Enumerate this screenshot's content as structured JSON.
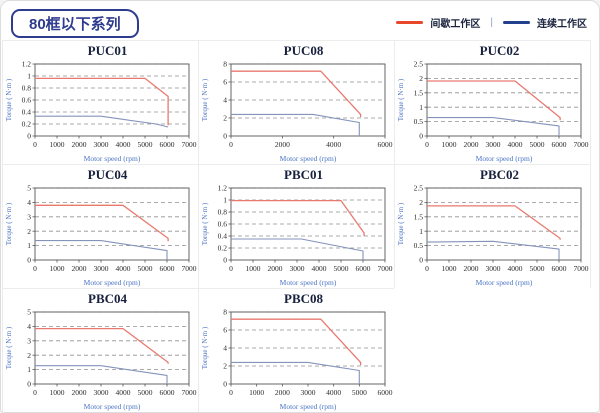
{
  "header": {
    "badge": "80框以下系列"
  },
  "legend": {
    "intermittent": "间歇工作区",
    "separator": "|",
    "continuous": "连续工作区",
    "intermittent_color": "#e8472b",
    "continuous_color": "#23408f"
  },
  "colors": {
    "red_line": "#e9796f",
    "blue_line": "#8593bb",
    "frame": "#555555",
    "gridline": "#909090",
    "tick_text": "#2a2a2a",
    "axis_label": "#4a74c4"
  },
  "chart_data": [
    {
      "type": "line",
      "title": "PUC01",
      "xlabel": "Motor speed (rpm)",
      "ylabel": "Torque ( N·m )",
      "xlim": [
        0,
        7000
      ],
      "xstep": 1000,
      "ylim": [
        0,
        1.2
      ],
      "ystep": 0.2,
      "grid": "horizontal-dashed",
      "legend_position": "none",
      "series": [
        {
          "name": "间歇工作区",
          "color_key": "red_line",
          "points": [
            [
              0,
              0.96
            ],
            [
              5000,
              0.96
            ],
            [
              6050,
              0.66
            ],
            [
              6050,
              0.18
            ]
          ]
        },
        {
          "name": "连续工作区",
          "color_key": "blue_line",
          "points": [
            [
              0,
              0.33
            ],
            [
              3000,
              0.33
            ],
            [
              5500,
              0.2
            ],
            [
              6050,
              0.15
            ]
          ]
        }
      ]
    },
    {
      "type": "line",
      "title": "PUC08",
      "xlabel": "Motor speed (rpm)",
      "ylabel": "Torque ( N·m )",
      "xlim": [
        0,
        6000
      ],
      "xstep": 2000,
      "ylim": [
        0,
        8
      ],
      "ystep": 2,
      "grid": "horizontal-dashed",
      "legend_position": "none",
      "series": [
        {
          "name": "间歇工作区",
          "color_key": "red_line",
          "points": [
            [
              0,
              7.2
            ],
            [
              3500,
              7.2
            ],
            [
              5050,
              2.4
            ],
            [
              5050,
              2.1
            ]
          ]
        },
        {
          "name": "连续工作区",
          "color_key": "blue_line",
          "points": [
            [
              0,
              2.4
            ],
            [
              3200,
              2.4
            ],
            [
              5000,
              1.5
            ],
            [
              5000,
              0
            ]
          ]
        }
      ]
    },
    {
      "type": "line",
      "title": "PUC02",
      "xlabel": "Motor speed (rpm)",
      "ylabel": "Torque ( N·m )",
      "xlim": [
        0,
        7000
      ],
      "xstep": 1000,
      "ylim": [
        0,
        2.5
      ],
      "ystep": 0.5,
      "grid": "horizontal-dashed",
      "legend_position": "none",
      "series": [
        {
          "name": "间歇工作区",
          "color_key": "red_line",
          "points": [
            [
              0,
              1.91
            ],
            [
              4000,
              1.91
            ],
            [
              6050,
              0.64
            ],
            [
              6050,
              0.55
            ]
          ]
        },
        {
          "name": "连续工作区",
          "color_key": "blue_line",
          "points": [
            [
              0,
              0.64
            ],
            [
              3000,
              0.64
            ],
            [
              6000,
              0.35
            ],
            [
              6000,
              0
            ]
          ]
        }
      ]
    },
    {
      "type": "line",
      "title": "PUC04",
      "xlabel": "Motor speed (rpm)",
      "ylabel": "Torque ( N·m )",
      "xlim": [
        0,
        7000
      ],
      "xstep": 1000,
      "ylim": [
        0,
        5
      ],
      "ystep": 1,
      "grid": "horizontal-dashed",
      "legend_position": "none",
      "series": [
        {
          "name": "间歇工作区",
          "color_key": "red_line",
          "points": [
            [
              0,
              3.8
            ],
            [
              4000,
              3.8
            ],
            [
              6050,
              1.5
            ],
            [
              6050,
              1.3
            ]
          ]
        },
        {
          "name": "连续工作区",
          "color_key": "blue_line",
          "points": [
            [
              0,
              1.35
            ],
            [
              3000,
              1.35
            ],
            [
              6000,
              0.65
            ],
            [
              6000,
              0
            ]
          ]
        }
      ]
    },
    {
      "type": "line",
      "title": "PBC01",
      "xlabel": "Motor speed (rpm)",
      "ylabel": "Torque ( N·m )",
      "xlim": [
        0,
        7000
      ],
      "xstep": 1000,
      "ylim": [
        0,
        1.2
      ],
      "ystep": 0.2,
      "grid": "horizontal-dashed",
      "legend_position": "none",
      "series": [
        {
          "name": "间歇工作区",
          "color_key": "red_line",
          "points": [
            [
              0,
              0.99
            ],
            [
              5000,
              0.99
            ],
            [
              6050,
              0.45
            ],
            [
              6050,
              0.4
            ]
          ]
        },
        {
          "name": "连续工作区",
          "color_key": "blue_line",
          "points": [
            [
              0,
              0.35
            ],
            [
              3200,
              0.35
            ],
            [
              6000,
              0.15
            ],
            [
              6000,
              0
            ]
          ]
        }
      ]
    },
    {
      "type": "line",
      "title": "PBC02",
      "xlabel": "Motor speed (rpm)",
      "ylabel": "Torque ( N·m )",
      "xlim": [
        0,
        7000
      ],
      "xstep": 1000,
      "ylim": [
        0,
        2.5
      ],
      "ystep": 0.5,
      "grid": "horizontal-dashed",
      "legend_position": "none",
      "series": [
        {
          "name": "间歇工作区",
          "color_key": "red_line",
          "points": [
            [
              0,
              1.88
            ],
            [
              4000,
              1.88
            ],
            [
              6050,
              0.75
            ],
            [
              6050,
              0.7
            ]
          ]
        },
        {
          "name": "连续工作区",
          "color_key": "blue_line",
          "points": [
            [
              0,
              0.62
            ],
            [
              3000,
              0.65
            ],
            [
              6000,
              0.38
            ],
            [
              6000,
              0
            ]
          ]
        }
      ]
    },
    {
      "type": "line",
      "title": "PBC04",
      "xlabel": "Motor speed (rpm)",
      "ylabel": "Torque ( N·m )",
      "xlim": [
        0,
        7000
      ],
      "xstep": 1000,
      "ylim": [
        0,
        5
      ],
      "ystep": 1,
      "grid": "horizontal-dashed",
      "legend_position": "none",
      "series": [
        {
          "name": "间歇工作区",
          "color_key": "red_line",
          "points": [
            [
              0,
              3.85
            ],
            [
              4000,
              3.85
            ],
            [
              6050,
              1.5
            ],
            [
              6050,
              1.4
            ]
          ]
        },
        {
          "name": "连续工作区",
          "color_key": "blue_line",
          "points": [
            [
              0,
              1.27
            ],
            [
              3000,
              1.27
            ],
            [
              6000,
              0.6
            ],
            [
              6000,
              0
            ]
          ]
        }
      ]
    },
    {
      "type": "line",
      "title": "PBC08",
      "xlabel": "Motor speed (rpm)",
      "ylabel": "Torque ( N·m )",
      "xlim": [
        0,
        6000
      ],
      "xstep": 1000,
      "ylim": [
        0,
        8
      ],
      "ystep": 2,
      "grid": "horizontal-dashed",
      "legend_position": "none",
      "series": [
        {
          "name": "间歇工作区",
          "color_key": "red_line",
          "points": [
            [
              0,
              7.2
            ],
            [
              3500,
              7.2
            ],
            [
              5050,
              2.4
            ],
            [
              5050,
              2.1
            ]
          ]
        },
        {
          "name": "连续工作区",
          "color_key": "blue_line",
          "points": [
            [
              0,
              2.4
            ],
            [
              3000,
              2.4
            ],
            [
              5000,
              1.5
            ],
            [
              5000,
              0
            ]
          ]
        }
      ]
    }
  ]
}
